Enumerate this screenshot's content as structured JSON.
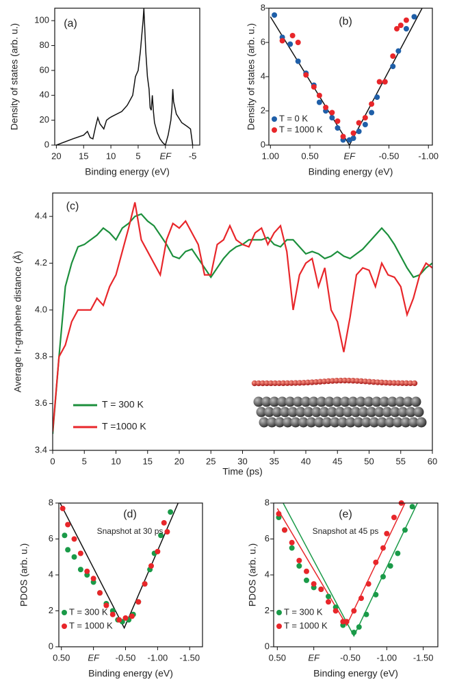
{
  "chart_data": [
    {
      "type": "line",
      "panel_label": "(a)",
      "x_label": "Binding energy (eV)",
      "y_label": "Density of states (arb. u.)",
      "xlim": [
        20.3,
        -6.3
      ],
      "ylim": [
        0,
        110
      ],
      "xticks": [
        20,
        15,
        10,
        5,
        {
          "value": 0,
          "label": "EF"
        },
        -5
      ],
      "yticks": [
        0,
        20,
        40,
        60,
        80,
        100
      ],
      "x": [
        20,
        17,
        15,
        14.3,
        13.8,
        13.3,
        12.8,
        12.4,
        12,
        11.3,
        10.8,
        10.2,
        9.8,
        8,
        7,
        6,
        5.5,
        5,
        4.6,
        4.3,
        4.1,
        3.95,
        3.8,
        3.6,
        3.3,
        3,
        2.8,
        2.6,
        2.4,
        2.2,
        2,
        1.5,
        1,
        0.5,
        0,
        -0.5,
        -1,
        -1.2,
        -1.35,
        -1.5,
        -2,
        -3,
        -4,
        -4.6,
        -5
      ],
      "series": [
        {
          "color": "#111111",
          "mode": "line",
          "values": [
            0,
            5,
            8,
            11,
            6,
            5,
            15,
            22,
            17,
            13,
            20,
            22,
            23,
            27,
            32,
            40,
            55,
            60,
            75,
            90,
            100,
            110,
            95,
            75,
            55,
            45,
            30,
            28,
            40,
            27,
            18,
            10,
            5,
            2,
            0,
            8,
            20,
            30,
            45,
            35,
            25,
            18,
            15,
            13,
            0
          ]
        }
      ]
    },
    {
      "type": "scatter",
      "panel_label": "(b)",
      "x_label": "Binding energy (eV)",
      "y_label": "Density of states (arb. u.)",
      "xlim": [
        1.02,
        -1.05
      ],
      "ylim": [
        0,
        8
      ],
      "xticks": [
        {
          "value": 1,
          "label": "1.00"
        },
        {
          "value": 0.5,
          "label": "0.50"
        },
        {
          "value": 0,
          "label": "EF"
        },
        {
          "value": -0.5,
          "label": "-0.50"
        },
        {
          "value": -1,
          "label": "-1.00"
        }
      ],
      "yticks": [
        0,
        2,
        4,
        6,
        8
      ],
      "series": [
        {
          "color": "#111111",
          "mode": "line",
          "x": [
            1.0,
            0.0,
            -0.92
          ],
          "values": [
            7.5,
            0,
            8
          ]
        },
        {
          "name": "T = 0 K",
          "color": "#1f5fa8",
          "mode": "markers",
          "x": [
            0.95,
            0.85,
            0.75,
            0.65,
            0.55,
            0.45,
            0.38,
            0.3,
            0.22,
            0.15,
            0.08,
            0.0,
            -0.05,
            -0.12,
            -0.2,
            -0.28,
            -0.35,
            -0.45,
            -0.55,
            -0.62,
            -0.72,
            -0.82
          ],
          "values": [
            7.6,
            6.3,
            5.9,
            4.9,
            4.2,
            3.5,
            2.5,
            2.0,
            1.6,
            1.0,
            0.3,
            0.3,
            0.4,
            0.8,
            1.2,
            1.9,
            2.8,
            3.7,
            4.6,
            5.5,
            6.8,
            7.5
          ]
        },
        {
          "name": "T = 1000 K",
          "color": "#e8262a",
          "mode": "markers",
          "x": [
            0.85,
            0.72,
            0.65,
            0.55,
            0.45,
            0.38,
            0.3,
            0.22,
            0.15,
            0.08,
            -0.05,
            -0.12,
            -0.2,
            -0.28,
            -0.38,
            -0.45,
            -0.55,
            -0.6,
            -0.65,
            -0.72
          ],
          "values": [
            6.1,
            6.4,
            6.0,
            4.1,
            3.4,
            2.9,
            2.2,
            1.9,
            1.4,
            0.5,
            0.7,
            1.3,
            1.6,
            2.4,
            3.7,
            3.7,
            5.2,
            6.8,
            7.0,
            7.3
          ]
        }
      ]
    },
    {
      "type": "line",
      "panel_label": "(c)",
      "x_label": "Time (ps)",
      "y_label": "Average Ir-graphene distance (Å)",
      "xlim": [
        0,
        60
      ],
      "ylim": [
        3.4,
        4.5
      ],
      "xticks": [
        0,
        5,
        10,
        15,
        20,
        25,
        30,
        35,
        40,
        45,
        50,
        55,
        60
      ],
      "yticks": [
        3.4,
        3.6,
        3.8,
        {
          "value": 4,
          "label": "4.0"
        },
        4.2,
        4.4
      ],
      "x": [
        0,
        1,
        2,
        3,
        4,
        5,
        6,
        7,
        8,
        9,
        10,
        11,
        12,
        13,
        14,
        15,
        16,
        17,
        18,
        19,
        20,
        21,
        22,
        23,
        24,
        25,
        26,
        27,
        28,
        29,
        30,
        31,
        32,
        33,
        34,
        35,
        36,
        37,
        38,
        39,
        40,
        41,
        42,
        43,
        44,
        45,
        46,
        47,
        48,
        49,
        50,
        51,
        52,
        53,
        54,
        55,
        56,
        57,
        58,
        59,
        60
      ],
      "series": [
        {
          "name": "T = 300 K",
          "color": "#1c8f3c",
          "mode": "line",
          "values": [
            3.47,
            3.8,
            4.1,
            4.2,
            4.27,
            4.28,
            4.3,
            4.32,
            4.35,
            4.33,
            4.3,
            4.35,
            4.37,
            4.4,
            4.41,
            4.38,
            4.36,
            4.32,
            4.28,
            4.23,
            4.22,
            4.25,
            4.26,
            4.22,
            4.18,
            4.14,
            4.18,
            4.22,
            4.25,
            4.27,
            4.28,
            4.3,
            4.3,
            4.3,
            4.31,
            4.28,
            4.27,
            4.3,
            4.3,
            4.27,
            4.24,
            4.25,
            4.24,
            4.22,
            4.23,
            4.25,
            4.23,
            4.22,
            4.24,
            4.26,
            4.29,
            4.32,
            4.35,
            4.32,
            4.28,
            4.23,
            4.18,
            4.14,
            4.15,
            4.18,
            4.2
          ]
        },
        {
          "name": "T =1000 K",
          "color": "#e8262a",
          "mode": "line",
          "values": [
            3.48,
            3.8,
            3.85,
            3.95,
            4.0,
            4.0,
            4.0,
            4.05,
            4.02,
            4.1,
            4.15,
            4.25,
            4.35,
            4.46,
            4.3,
            4.25,
            4.2,
            4.15,
            4.3,
            4.37,
            4.35,
            4.38,
            4.33,
            4.28,
            4.15,
            4.15,
            4.28,
            4.3,
            4.36,
            4.3,
            4.28,
            4.27,
            4.33,
            4.35,
            4.28,
            4.33,
            4.36,
            4.25,
            4.0,
            4.15,
            4.2,
            4.22,
            4.1,
            4.18,
            4.0,
            3.95,
            3.82,
            3.97,
            4.15,
            4.18,
            4.17,
            4.1,
            4.2,
            4.15,
            4.14,
            4.1,
            3.98,
            4.05,
            4.15,
            4.2,
            4.18
          ]
        }
      ]
    },
    {
      "type": "scatter",
      "panel_label": "(d)",
      "annotation": "Snapshot at 30 ps",
      "x_label": "Binding energy (eV)",
      "y_label": "PDOS (arb. u.)",
      "xlim": [
        0.54,
        -1.7
      ],
      "ylim": [
        0,
        8
      ],
      "xticks": [
        {
          "value": 0.5,
          "label": "0.50"
        },
        {
          "value": 0,
          "label": "EF"
        },
        {
          "value": -0.5,
          "label": "-0.50"
        },
        {
          "value": -1,
          "label": "-1.00"
        },
        {
          "value": -1.5,
          "label": "-1.50"
        }
      ],
      "yticks": [
        0,
        2,
        4,
        6,
        8
      ],
      "series": [
        {
          "color": "#111111",
          "mode": "line",
          "x": [
            0.52,
            -0.48,
            -1.32
          ],
          "values": [
            8,
            1.05,
            8
          ]
        },
        {
          "name": "T = 300 K",
          "color": "#1a9a48",
          "mode": "markers",
          "x": [
            0.45,
            0.4,
            0.3,
            0.2,
            0.1,
            0.0,
            -0.1,
            -0.2,
            -0.3,
            -0.38,
            -0.45,
            -0.55,
            -0.62,
            -0.7,
            -0.8,
            -0.88,
            -0.95,
            -1.05,
            -1.2
          ],
          "values": [
            6.2,
            5.4,
            5.0,
            4.3,
            4.0,
            3.6,
            3.0,
            2.4,
            2.0,
            1.5,
            1.4,
            1.5,
            1.8,
            2.5,
            3.5,
            4.3,
            5.2,
            6.2,
            7.5
          ]
        },
        {
          "name": "T = 1000 K",
          "color": "#e8262a",
          "mode": "markers",
          "x": [
            0.48,
            0.4,
            0.3,
            0.2,
            0.1,
            0.0,
            -0.1,
            -0.2,
            -0.3,
            -0.4,
            -0.5,
            -0.6,
            -0.7,
            -0.8,
            -0.9,
            -1.0,
            -1.1,
            -1.15
          ],
          "values": [
            7.7,
            6.8,
            6.0,
            5.2,
            4.2,
            3.8,
            3.0,
            2.3,
            1.8,
            1.5,
            1.6,
            1.7,
            2.5,
            3.5,
            4.5,
            5.3,
            6.9,
            6.4
          ]
        }
      ]
    },
    {
      "type": "scatter",
      "panel_label": "(e)",
      "annotation": "Snapshot at 45 ps",
      "x_label": "Binding energy (eV)",
      "y_label": "PDOS (arb. u.)",
      "xlim": [
        0.55,
        -1.7
      ],
      "ylim": [
        0,
        8
      ],
      "xticks": [
        {
          "value": 0.5,
          "label": "0.50"
        },
        {
          "value": 0,
          "label": "EF"
        },
        {
          "value": -0.5,
          "label": "-0.50"
        },
        {
          "value": -1,
          "label": "-1.00"
        },
        {
          "value": -1.5,
          "label": "-1.50"
        }
      ],
      "yticks": [
        0,
        2,
        4,
        6,
        8
      ],
      "series": [
        {
          "color": "#e8262a",
          "mode": "line",
          "x": [
            0.5,
            -0.45,
            -1.25
          ],
          "values": [
            7.7,
            1.2,
            8
          ]
        },
        {
          "color": "#1a9a48",
          "mode": "line",
          "x": [
            0.42,
            -0.55,
            -1.42
          ],
          "values": [
            8,
            0.6,
            8
          ]
        },
        {
          "name": "T = 300 K",
          "color": "#1a9a48",
          "mode": "markers",
          "x": [
            0.48,
            0.4,
            0.3,
            0.2,
            0.1,
            0.0,
            -0.1,
            -0.2,
            -0.3,
            -0.4,
            -0.55,
            -0.62,
            -0.72,
            -0.85,
            -0.95,
            -1.05,
            -1.15,
            -1.25,
            -1.35
          ],
          "values": [
            7.2,
            6.5,
            5.5,
            4.5,
            3.7,
            3.3,
            3.2,
            2.8,
            2.2,
            1.2,
            0.8,
            1.1,
            1.8,
            2.9,
            3.9,
            4.5,
            5.2,
            6.5,
            7.8
          ]
        },
        {
          "name": "T = 1000 K",
          "color": "#e8262a",
          "mode": "markers",
          "x": [
            0.48,
            0.4,
            0.3,
            0.2,
            0.1,
            0.0,
            -0.1,
            -0.2,
            -0.3,
            -0.4,
            -0.45,
            -0.55,
            -0.65,
            -0.75,
            -0.85,
            -0.95,
            -1.0,
            -1.1,
            -1.2
          ],
          "values": [
            7.4,
            6.5,
            5.8,
            4.8,
            4.2,
            3.5,
            3.2,
            2.5,
            2.0,
            1.4,
            1.4,
            2.0,
            2.7,
            3.5,
            4.7,
            5.5,
            6.3,
            7.2,
            8.0
          ]
        }
      ]
    }
  ]
}
